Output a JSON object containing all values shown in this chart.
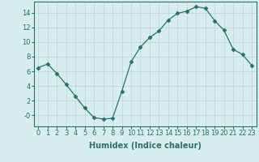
{
  "x": [
    0,
    1,
    2,
    3,
    4,
    5,
    6,
    7,
    8,
    9,
    10,
    11,
    12,
    13,
    14,
    15,
    16,
    17,
    18,
    19,
    20,
    21,
    22,
    23
  ],
  "y": [
    6.5,
    7.0,
    5.7,
    4.2,
    2.6,
    1.0,
    -0.3,
    -0.5,
    -0.4,
    3.3,
    7.3,
    9.3,
    10.6,
    11.5,
    13.0,
    13.9,
    14.2,
    14.8,
    14.6,
    12.9,
    11.6,
    9.0,
    8.3,
    6.8
  ],
  "line_color": "#2e6e6e",
  "marker": "D",
  "marker_size": 2.5,
  "bg_color": "#d8eeee",
  "grid_color": "#b8d8d8",
  "xlabel": "Humidex (Indice chaleur)",
  "xlim": [
    -0.5,
    23.5
  ],
  "ylim": [
    -1.5,
    15.5
  ],
  "yticks": [
    0,
    2,
    4,
    6,
    8,
    10,
    12,
    14
  ],
  "ytick_labels": [
    "-0",
    "2",
    "4",
    "6",
    "8",
    "10",
    "12",
    "14"
  ],
  "xticks": [
    0,
    1,
    2,
    3,
    4,
    5,
    6,
    7,
    8,
    9,
    10,
    11,
    12,
    13,
    14,
    15,
    16,
    17,
    18,
    19,
    20,
    21,
    22,
    23
  ],
  "label_fontsize": 7,
  "tick_fontsize": 6
}
